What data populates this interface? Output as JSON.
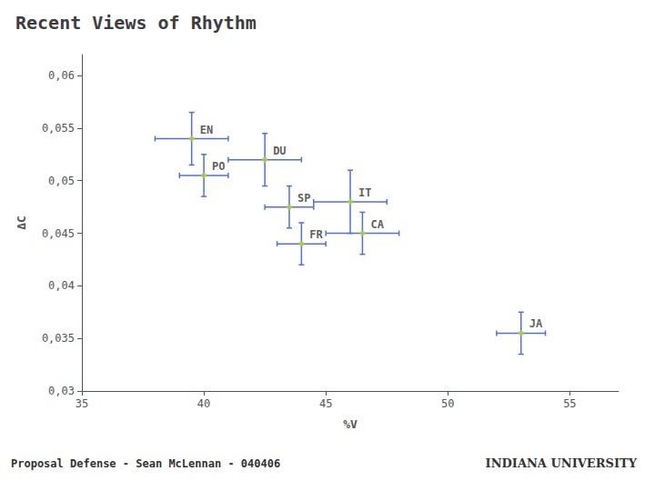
{
  "chart_data": {
    "type": "scatter",
    "title": "Recent Views of Rhythm",
    "xlabel": "%V",
    "ylabel": "ΔC",
    "x": [
      39.5,
      42.5,
      40.0,
      43.5,
      46.0,
      44.0,
      46.5,
      53.0
    ],
    "values": [
      0.054,
      0.052,
      0.0505,
      0.0475,
      0.048,
      0.044,
      0.045,
      0.0355
    ],
    "labels": [
      "EN",
      "DU",
      "PO",
      "SP",
      "IT",
      "FR",
      "CA",
      "JA"
    ],
    "xerr": [
      1.5,
      1.5,
      1.0,
      1.0,
      1.5,
      1.0,
      1.5,
      1.0
    ],
    "yerr": [
      0.0025,
      0.0025,
      0.002,
      0.002,
      0.003,
      0.002,
      0.002,
      0.002
    ],
    "xlim": [
      35,
      57
    ],
    "ylim": [
      0.03,
      0.062
    ],
    "xticks": [
      35,
      40,
      45,
      50,
      55
    ],
    "yticks": [
      {
        "value": 0.03,
        "label": "0,03"
      },
      {
        "value": 0.035,
        "label": "0,035"
      },
      {
        "value": 0.04,
        "label": "0,04"
      },
      {
        "value": 0.045,
        "label": "0,045"
      },
      {
        "value": 0.05,
        "label": "0,05"
      },
      {
        "value": 0.055,
        "label": "0,055"
      },
      {
        "value": 0.06,
        "label": "0,06"
      }
    ],
    "grid": false,
    "annotations": [
      "Proposal Defense - Sean McLennan - 040406",
      "INDIANA UNIVERSITY"
    ]
  }
}
